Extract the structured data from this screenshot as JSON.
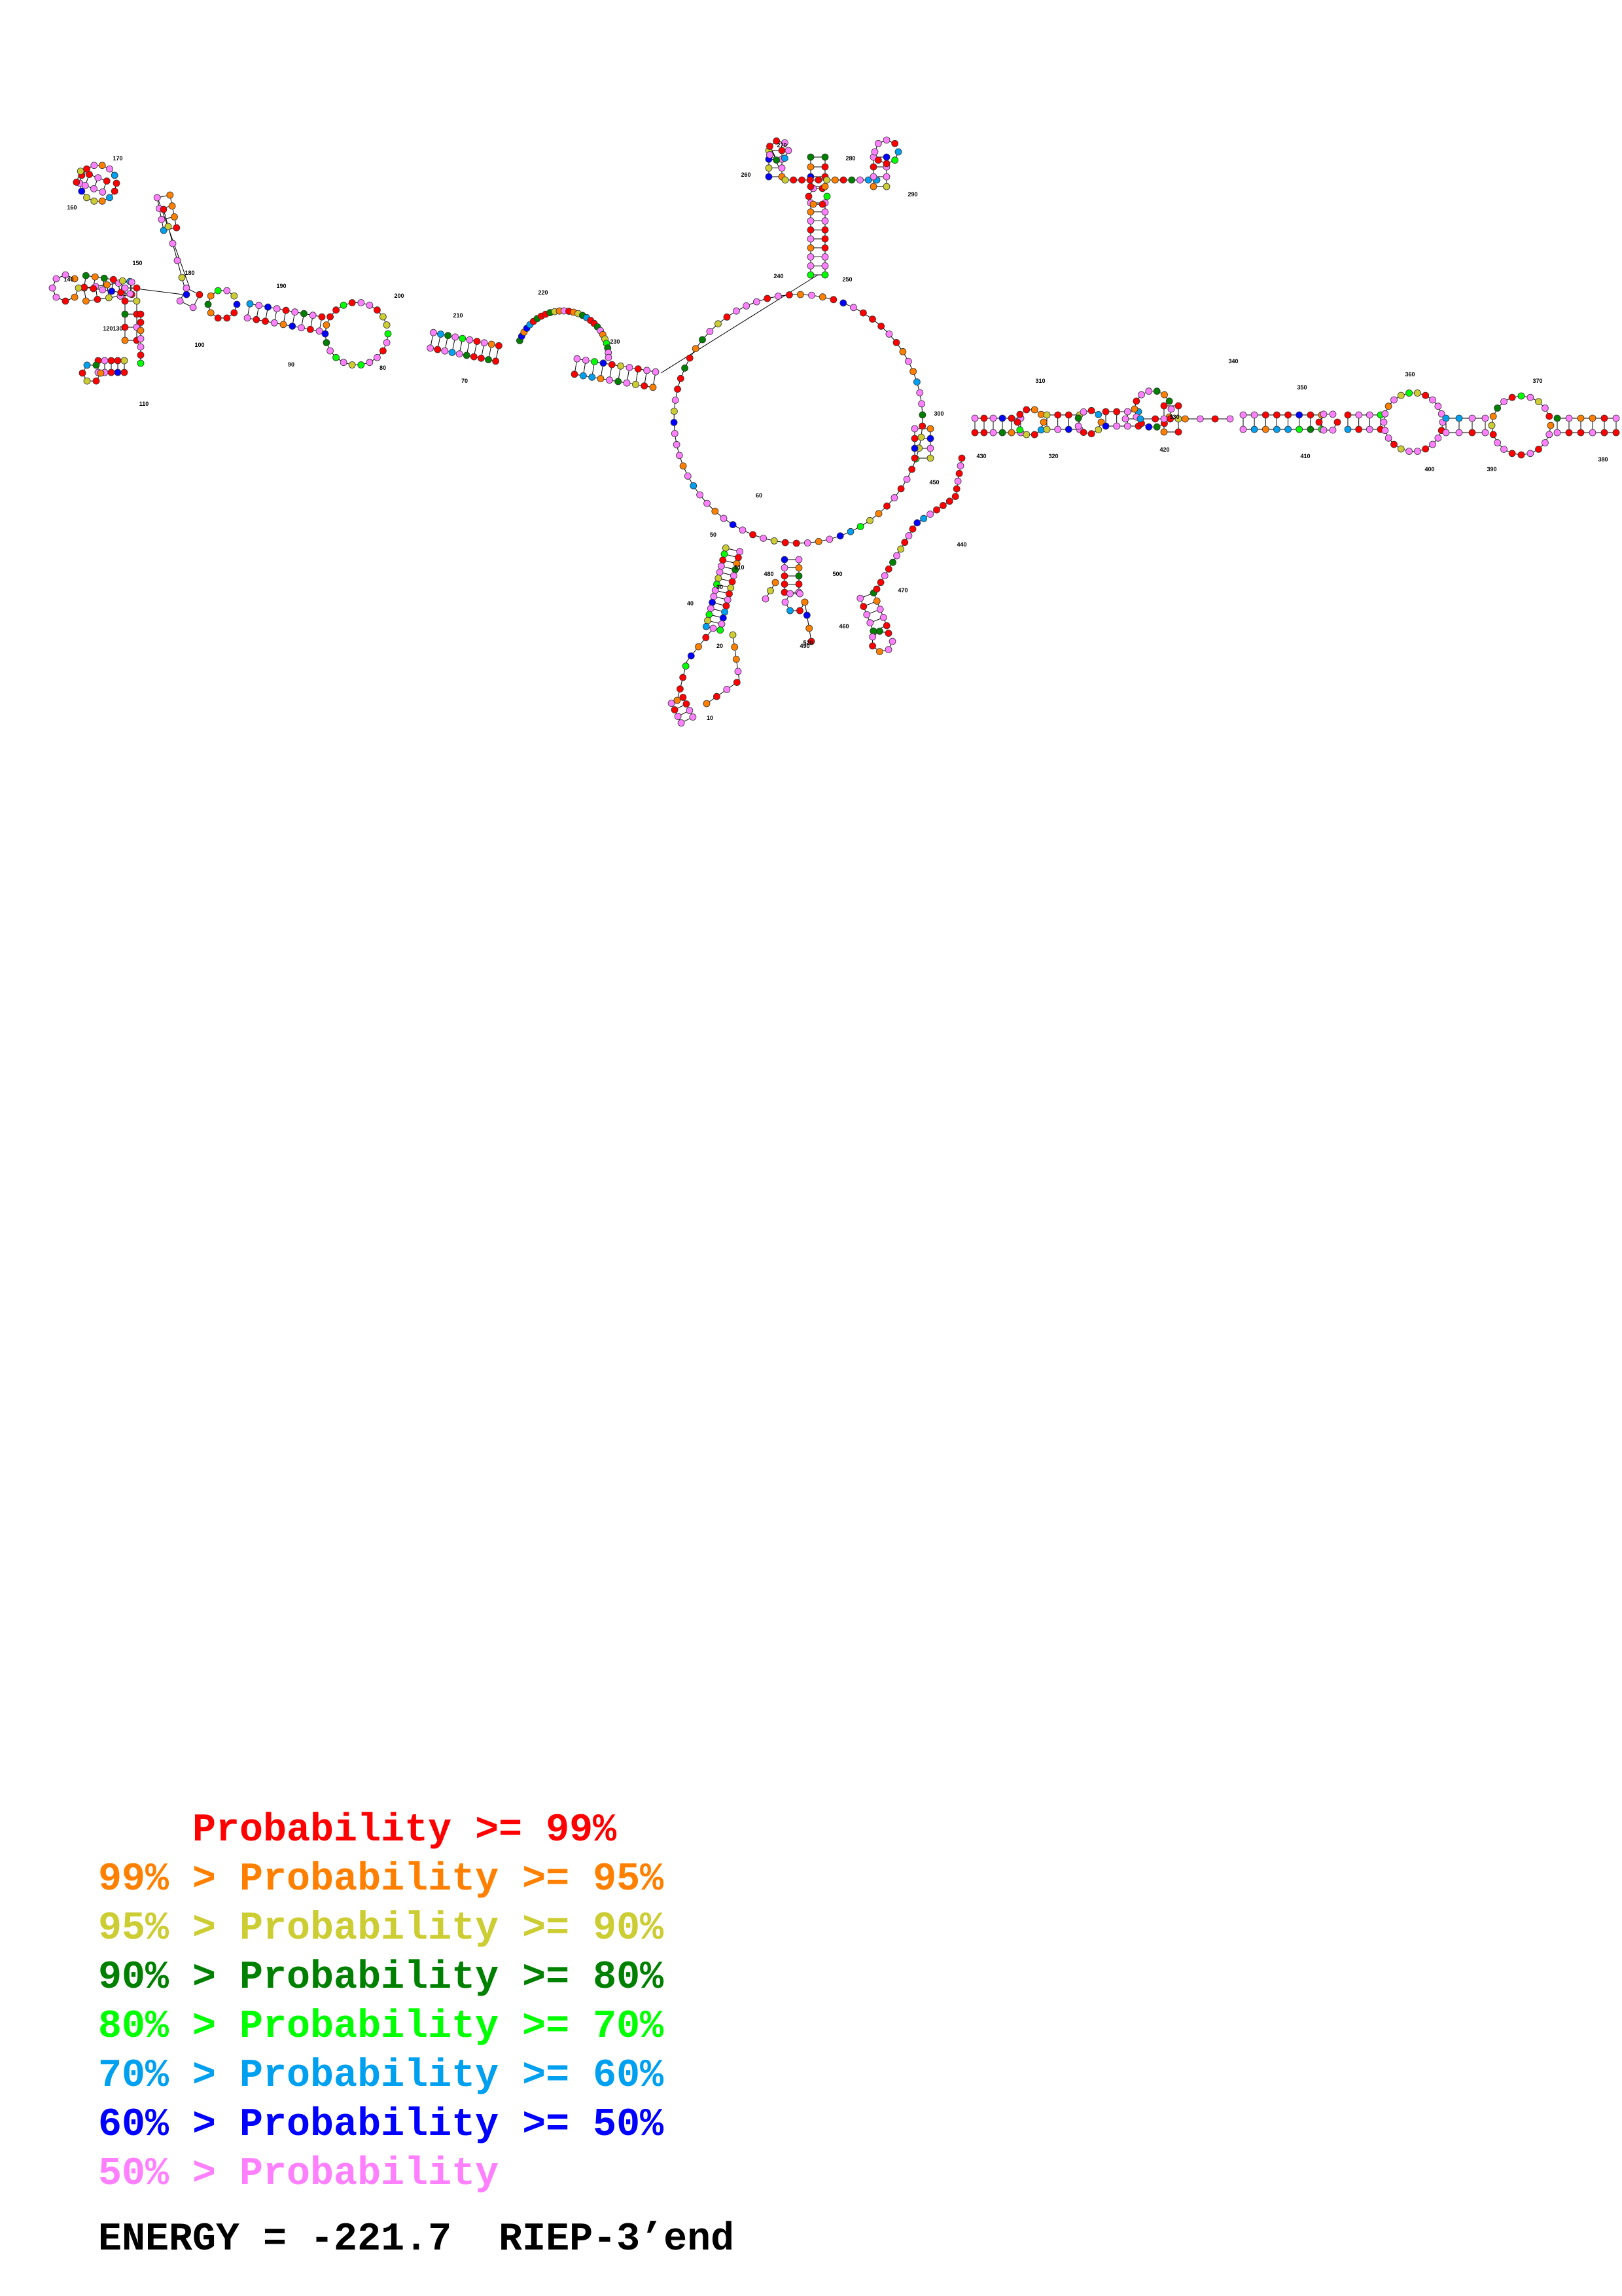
{
  "structure": {
    "position_labels": [
      {
        "text": "10"
      },
      {
        "text": "20"
      },
      {
        "text": "30"
      },
      {
        "text": "40"
      },
      {
        "text": "50"
      },
      {
        "text": "60"
      },
      {
        "text": "70"
      },
      {
        "text": "80"
      },
      {
        "text": "90"
      },
      {
        "text": "100"
      },
      {
        "text": "110"
      },
      {
        "text": "120"
      },
      {
        "text": "130"
      },
      {
        "text": "140"
      },
      {
        "text": "150"
      },
      {
        "text": "160"
      },
      {
        "text": "170"
      },
      {
        "text": "180"
      },
      {
        "text": "190"
      },
      {
        "text": "200"
      },
      {
        "text": "210"
      },
      {
        "text": "220"
      },
      {
        "text": "230"
      },
      {
        "text": "240"
      },
      {
        "text": "250"
      },
      {
        "text": "260"
      },
      {
        "text": "270"
      },
      {
        "text": "280"
      },
      {
        "text": "290"
      },
      {
        "text": "300"
      },
      {
        "text": "310"
      },
      {
        "text": "320"
      },
      {
        "text": "330"
      },
      {
        "text": "340"
      },
      {
        "text": "350"
      },
      {
        "text": "360"
      },
      {
        "text": "370"
      },
      {
        "text": "380"
      },
      {
        "text": "390"
      },
      {
        "text": "400"
      },
      {
        "text": "410"
      },
      {
        "text": "420"
      },
      {
        "text": "430"
      },
      {
        "text": "440"
      },
      {
        "text": "450"
      },
      {
        "text": "460"
      },
      {
        "text": "470"
      },
      {
        "text": "480"
      },
      {
        "text": "490"
      },
      {
        "text": "500"
      },
      {
        "text": "510"
      },
      {
        "text": "520"
      }
    ]
  },
  "legend": {
    "rows": [
      {
        "text": "    Probability >= 99%",
        "color": "#ff0000"
      },
      {
        "text": "99% > Probability >= 95%",
        "color": "#ff8000"
      },
      {
        "text": "95% > Probability >= 90%",
        "color": "#cccc33"
      },
      {
        "text": "90% > Probability >= 80%",
        "color": "#008000"
      },
      {
        "text": "80% > Probability >= 70%",
        "color": "#00ff00"
      },
      {
        "text": "70% > Probability >= 60%",
        "color": "#00a0f0"
      },
      {
        "text": "60% > Probability >= 50%",
        "color": "#0000ff"
      },
      {
        "text": "50% > Probability",
        "color": "#ff80ff"
      }
    ],
    "energy": "ENERGY = -221.7  RIEP-3’end"
  }
}
